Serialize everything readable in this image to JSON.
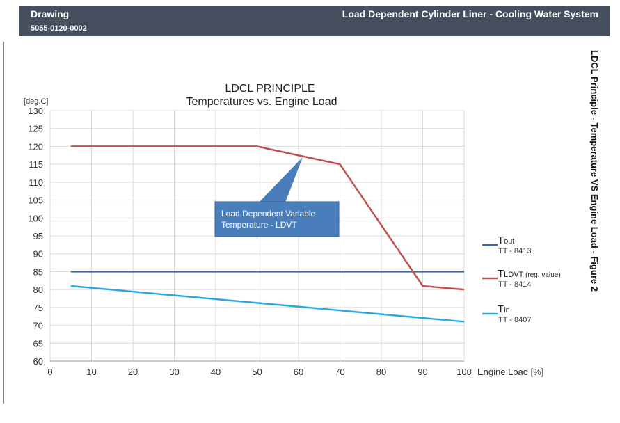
{
  "header": {
    "left_title": "Drawing",
    "drawing_number": "5055-0120-0002",
    "right_title": "Load Dependent Cylinder Liner - Cooling Water System"
  },
  "side_caption": "LDCL Principle - Temperature VS Engine Load - Figure 2",
  "chart_data": {
    "type": "line",
    "title": "LDCL PRINCIPLE",
    "subtitle": "Temperatures vs. Engine Load",
    "xlabel": "Engine Load [%]",
    "ylabel": "[deg.C]",
    "xlim": [
      0,
      100
    ],
    "ylim": [
      60,
      130
    ],
    "xticks": [
      0,
      10,
      20,
      30,
      40,
      50,
      60,
      70,
      80,
      90,
      100
    ],
    "yticks": [
      60,
      65,
      70,
      75,
      80,
      85,
      90,
      95,
      100,
      105,
      110,
      115,
      120,
      125,
      130
    ],
    "grid": true,
    "legend_position": "right",
    "series": [
      {
        "name": "Tout",
        "sub": "out",
        "main": "T",
        "tag": "TT - 8413",
        "color": "#3a6aaa",
        "points": [
          [
            5,
            85
          ],
          [
            100,
            85
          ]
        ]
      },
      {
        "name": "TLDVT (reg. value)",
        "sub": "LDVT",
        "extra": " (reg. value)",
        "main": "T",
        "tag": "TT - 8414",
        "color": "#c0504d",
        "points": [
          [
            5,
            120
          ],
          [
            50,
            120
          ],
          [
            70,
            115
          ],
          [
            90,
            81
          ],
          [
            100,
            80
          ]
        ]
      },
      {
        "name": "Tin",
        "sub": "in",
        "main": "T",
        "tag": "TT - 8407",
        "color": "#2aa8e0",
        "points": [
          [
            5,
            81
          ],
          [
            100,
            71
          ]
        ]
      }
    ],
    "annotation": {
      "line1": "Load Dependent Variable",
      "line2": "Temperature - LDVT",
      "target": [
        61,
        117
      ],
      "color": "#4a7ebb"
    }
  }
}
